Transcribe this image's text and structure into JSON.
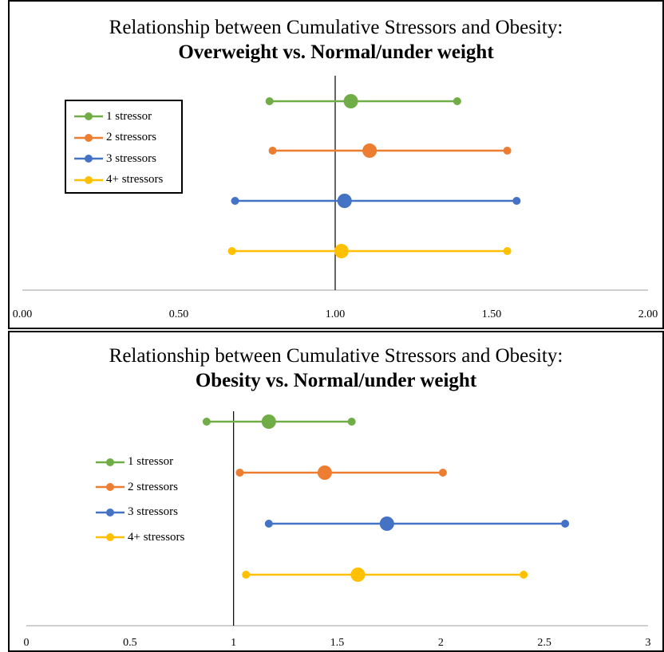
{
  "chart_data": [
    {
      "type": "scatter",
      "title": "Relationship between Cumulative Stressors and Obesity:",
      "subtitle": "Overweight vs. Normal/under weight",
      "xlim": [
        0,
        2
      ],
      "reference_line_x": 1,
      "x_ticks": [
        "0.00",
        "0.50",
        "1.00",
        "1.50",
        "2.00"
      ],
      "x_tick_values": [
        0,
        0.5,
        1,
        1.5,
        2
      ],
      "legend_position": "top-left",
      "legend_border": true,
      "series": [
        {
          "name": "1 stressor",
          "color": "#70AD47",
          "estimate": 1.05,
          "lower": 0.79,
          "upper": 1.39
        },
        {
          "name": "2 stressors",
          "color": "#ED7D31",
          "estimate": 1.11,
          "lower": 0.8,
          "upper": 1.55
        },
        {
          "name": "3 stressors",
          "color": "#4472C4",
          "estimate": 1.03,
          "lower": 0.68,
          "upper": 1.58
        },
        {
          "name": "4+ stressors",
          "color": "#FFC000",
          "estimate": 1.02,
          "lower": 0.67,
          "upper": 1.55
        }
      ]
    },
    {
      "type": "scatter",
      "title": "Relationship between Cumulative Stressors and Obesity:",
      "subtitle": "Obesity vs. Normal/under weight",
      "xlim": [
        0,
        3
      ],
      "reference_line_x": 1,
      "x_ticks": [
        "0",
        "0.5",
        "1",
        "1.5",
        "2",
        "2.5",
        "3"
      ],
      "x_tick_values": [
        0,
        0.5,
        1,
        1.5,
        2,
        2.5,
        3
      ],
      "legend_position": "left",
      "legend_border": false,
      "series": [
        {
          "name": "1 stressor",
          "color": "#70AD47",
          "estimate": 1.17,
          "lower": 0.87,
          "upper": 1.57
        },
        {
          "name": "2 stressors",
          "color": "#ED7D31",
          "estimate": 1.44,
          "lower": 1.03,
          "upper": 2.01
        },
        {
          "name": "3 stressors",
          "color": "#4472C4",
          "estimate": 1.74,
          "lower": 1.17,
          "upper": 2.6
        },
        {
          "name": "4+ stressors",
          "color": "#FFC000",
          "estimate": 1.6,
          "lower": 1.06,
          "upper": 2.4
        }
      ]
    }
  ]
}
